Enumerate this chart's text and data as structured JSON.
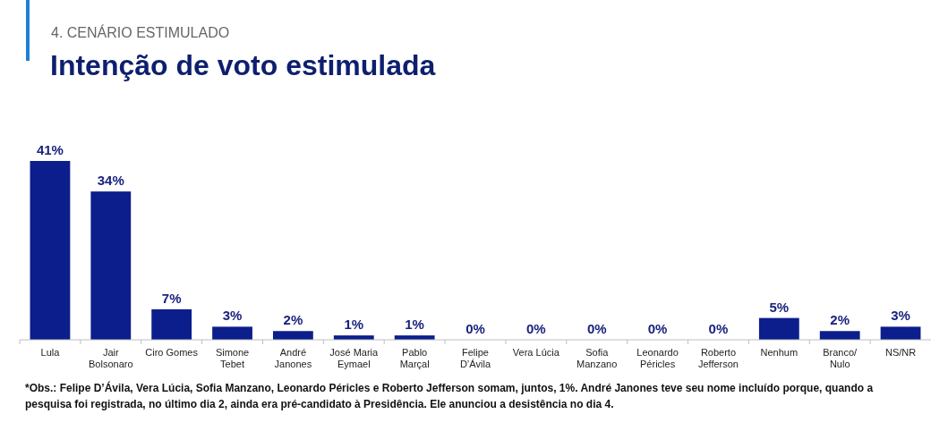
{
  "chart_data": {
    "type": "bar",
    "subtitle": "4. CENÁRIO ESTIMULADO",
    "title": "Intenção de voto estimulada",
    "categories": [
      "Lula",
      "Jair Bolsonaro",
      "Ciro Gomes",
      "Simone Tebet",
      "André Janones",
      "José Maria Eymael",
      "Pablo Marçal",
      "Felipe D’Ávila",
      "Vera Lúcia",
      "Sofia Manzano",
      "Leonardo Péricles",
      "Roberto Jefferson",
      "Nenhum",
      "Branco/ Nulo",
      "NS/NR"
    ],
    "values": [
      41,
      34,
      7,
      3,
      2,
      1,
      1,
      0,
      0,
      0,
      0,
      0,
      5,
      2,
      3
    ],
    "value_labels": [
      "41%",
      "34%",
      "7%",
      "3%",
      "2%",
      "1%",
      "1%",
      "0%",
      "0%",
      "0%",
      "0%",
      "0%",
      "5%",
      "2%",
      "3%"
    ],
    "color": "#0c1d8c",
    "annotations": [
      "*Obs.: Felipe D’Ávila, Vera Lúcia, Sofia Manzano, Leonardo Péricles e Roberto Jefferson somam, juntos, 1%. André Janones teve seu nome incluído porque, quando a pesquisa foi registrada, no último dia 2, ainda era pré-candidato à Presidência. Ele anunciou a desistência no dia 4."
    ]
  }
}
